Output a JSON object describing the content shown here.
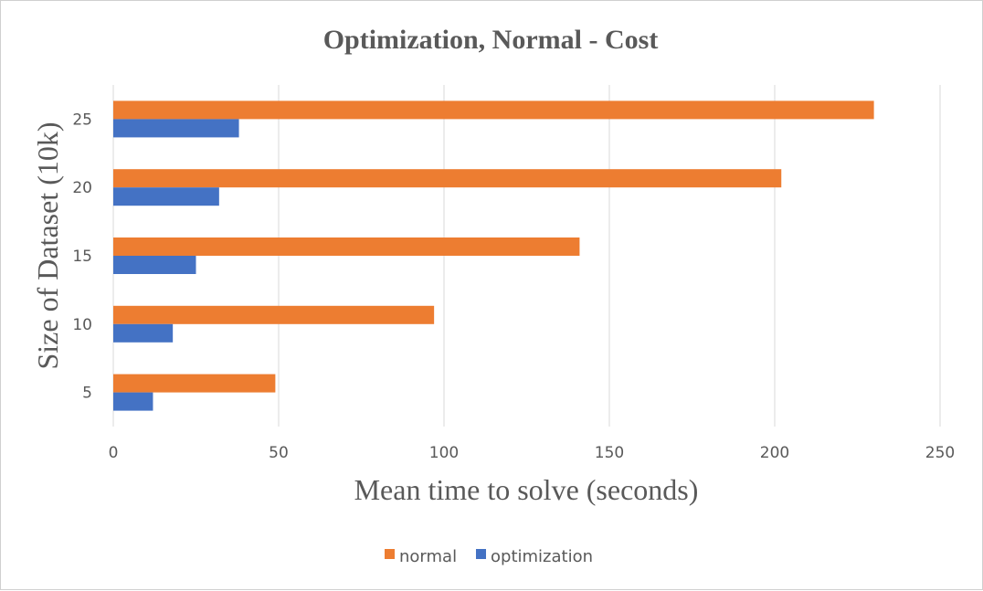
{
  "chart_data": {
    "type": "bar",
    "orientation": "horizontal",
    "title": "Optimization, Normal - Cost",
    "xlabel": "Mean time to solve (seconds)",
    "ylabel": "Size of Dataset (10k)",
    "categories": [
      "5",
      "10",
      "15",
      "20",
      "25"
    ],
    "series": [
      {
        "name": "normal",
        "color": "#ED7D31",
        "values": [
          49,
          97,
          141,
          202,
          230
        ]
      },
      {
        "name": "optimization",
        "color": "#4472C4",
        "values": [
          12,
          18,
          25,
          32,
          38
        ]
      }
    ],
    "xlim": [
      0,
      250
    ],
    "xticks": [
      0,
      50,
      100,
      150,
      200,
      250
    ],
    "grid": true,
    "legend_position": "bottom"
  }
}
